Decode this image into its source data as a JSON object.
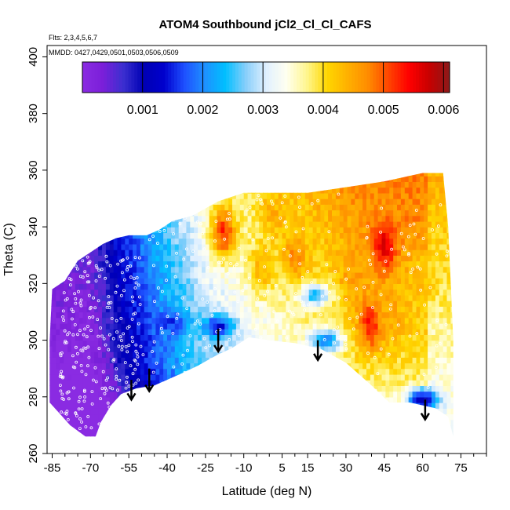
{
  "chart_data": {
    "type": "heatmap",
    "title": "ATOM4 Southbound jCl2_Cl_Cl_CAFS",
    "flights_note": "Flts: 2,3,4,5,6,7",
    "dates_note": "MMDD: 0427,0429,0501,0503,0506,0509",
    "xlabel": "Latitude (deg N)",
    "ylabel": "Theta (C)",
    "xlim": [
      -87,
      85
    ],
    "ylim": [
      260,
      404
    ],
    "x_ticks": [
      -85,
      -70,
      -55,
      -40,
      -25,
      -10,
      5,
      15,
      30,
      45,
      60,
      75
    ],
    "y_ticks": [
      260,
      280,
      300,
      320,
      340,
      360,
      380,
      400
    ],
    "colorbar": {
      "min": 0.0,
      "max": 0.0061,
      "ticks": [
        0.001,
        0.002,
        0.003,
        0.004,
        0.005,
        0.006
      ],
      "tick_labels": [
        "0.001",
        "0.002",
        "0.003",
        "0.004",
        "0.005",
        "0.006"
      ],
      "colors": [
        "#8a2be2",
        "#7b1fd9",
        "#3b2fd0",
        "#0000b4",
        "#0000cd",
        "#1e50ff",
        "#1e90ff",
        "#00bfff",
        "#87cefa",
        "#e0f0ff",
        "#fffff0",
        "#fff68f",
        "#ffd700",
        "#ffb000",
        "#ff8c00",
        "#ff4500",
        "#ff0000",
        "#c80000",
        "#8b1a1a"
      ]
    },
    "domain_upper": [
      [
        -85,
        318
      ],
      [
        -80,
        321
      ],
      [
        -75,
        328
      ],
      [
        -70,
        331
      ],
      [
        -65,
        334
      ],
      [
        -60,
        336
      ],
      [
        -55,
        337
      ],
      [
        -48,
        337
      ],
      [
        -43,
        339
      ],
      [
        -38,
        342
      ],
      [
        -30,
        344
      ],
      [
        -20,
        349
      ],
      [
        -10,
        352
      ],
      [
        0,
        352
      ],
      [
        15,
        352
      ],
      [
        30,
        354
      ],
      [
        45,
        356
      ],
      [
        60,
        359
      ],
      [
        68,
        359
      ],
      [
        70,
        340
      ],
      [
        72,
        300
      ],
      [
        72,
        266
      ]
    ],
    "domain_lower": [
      [
        72,
        266
      ],
      [
        70,
        273
      ],
      [
        65,
        276
      ],
      [
        55,
        278
      ],
      [
        47,
        278
      ],
      [
        40,
        284
      ],
      [
        30,
        292
      ],
      [
        20,
        297
      ],
      [
        10,
        299
      ],
      [
        0,
        300
      ],
      [
        -8,
        301
      ],
      [
        -15,
        297
      ],
      [
        -20,
        295
      ],
      [
        -28,
        291
      ],
      [
        -35,
        288
      ],
      [
        -45,
        284
      ],
      [
        -52,
        283
      ],
      [
        -58,
        281
      ],
      [
        -62,
        277
      ],
      [
        -66,
        271
      ],
      [
        -68,
        266
      ],
      [
        -72,
        266
      ],
      [
        -78,
        270
      ],
      [
        -82,
        274
      ],
      [
        -86,
        278
      ],
      [
        -86,
        300
      ]
    ],
    "anomalies": [
      {
        "lat": 45,
        "theta": 333,
        "value": 0.0056
      },
      {
        "lat": -18,
        "theta": 338,
        "value": 0.0052
      },
      {
        "lat": 40,
        "theta": 306,
        "value": 0.0054
      },
      {
        "lat": 55,
        "theta": 344,
        "value": 0.0048
      },
      {
        "lat": 10,
        "theta": 330,
        "value": 0.0047
      },
      {
        "lat": 33,
        "theta": 322,
        "value": 0.0046
      },
      {
        "lat": 48,
        "theta": 308,
        "value": 0.0045
      },
      {
        "lat": 60,
        "theta": 322,
        "value": 0.0042
      },
      {
        "lat": -3,
        "theta": 326,
        "value": 0.0044
      },
      {
        "lat": 2,
        "theta": 345,
        "value": 0.0044
      }
    ],
    "low_blobs": [
      {
        "lat": -20,
        "theta": 305,
        "value": 0.0013
      },
      {
        "lat": -38,
        "theta": 306,
        "value": 0.0016
      },
      {
        "lat": 18,
        "theta": 316,
        "value": 0.0024
      },
      {
        "lat": 60,
        "theta": 279,
        "value": 0.0009
      },
      {
        "lat": 22,
        "theta": 300,
        "value": 0.0019
      }
    ],
    "arrows": [
      {
        "lat": -54,
        "theta_top": 286,
        "theta_bottom": 279
      },
      {
        "lat": -47,
        "theta_top": 290,
        "theta_bottom": 282
      },
      {
        "lat": -20,
        "theta_top": 304,
        "theta_bottom": 296
      },
      {
        "lat": 19,
        "theta_top": 300,
        "theta_bottom": 293
      },
      {
        "lat": 61,
        "theta_top": 279,
        "theta_bottom": 272
      }
    ]
  }
}
